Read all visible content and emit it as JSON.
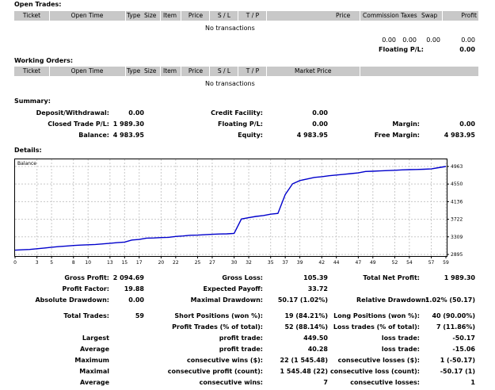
{
  "open_trades": {
    "title": "Open Trades:",
    "columns": [
      "Ticket",
      "Open Time",
      "Type",
      "Size",
      "Item",
      "Price",
      "S / L",
      "T / P",
      "Price",
      "Commission",
      "Taxes",
      "Swap",
      "Profit"
    ],
    "empty": "No transactions",
    "totals": {
      "commission": "0.00",
      "taxes": "0.00",
      "swap": "0.00",
      "profit": "0.00"
    },
    "floating_label": "Floating P/L:",
    "floating_value": "0.00"
  },
  "working_orders": {
    "title": "Working Orders:",
    "columns": [
      "Ticket",
      "Open Time",
      "Type",
      "Size",
      "Item",
      "Price",
      "S / L",
      "T / P",
      "Market Price"
    ],
    "empty": "No transactions"
  },
  "summary": {
    "title": "Summary:",
    "deposit_label": "Deposit/Withdrawal:",
    "deposit_value": "0.00",
    "credit_label": "Credit Facility:",
    "credit_value": "0.00",
    "closed_label": "Closed Trade P/L:",
    "closed_value": "1 989.30",
    "floating_label": "Floating P/L:",
    "floating_value": "0.00",
    "margin_label": "Margin:",
    "margin_value": "0.00",
    "balance_label": "Balance:",
    "balance_value": "4 983.95",
    "equity_label": "Equity:",
    "equity_value": "4 983.95",
    "free_margin_label": "Free Margin:",
    "free_margin_value": "4 983.95"
  },
  "details": {
    "title": "Details:"
  },
  "chart_data": {
    "type": "line",
    "legend": "Balance",
    "x_ticks": [
      0,
      3,
      5,
      8,
      10,
      13,
      15,
      17,
      20,
      22,
      25,
      27,
      30,
      32,
      35,
      37,
      39,
      42,
      44,
      47,
      49,
      52,
      54,
      57,
      59
    ],
    "y_ticks": [
      "4963",
      "4550",
      "4136",
      "3722",
      "3309",
      "2895"
    ],
    "ylim": [
      2895,
      4963
    ],
    "xlim": [
      0,
      59
    ],
    "grid": true,
    "series": [
      {
        "values": [
          [
            0,
            2995
          ],
          [
            1,
            3005
          ],
          [
            2,
            3012
          ],
          [
            3,
            3030
          ],
          [
            4,
            3045
          ],
          [
            5,
            3065
          ],
          [
            6,
            3080
          ],
          [
            7,
            3092
          ],
          [
            8,
            3105
          ],
          [
            9,
            3115
          ],
          [
            10,
            3122
          ],
          [
            11,
            3130
          ],
          [
            12,
            3142
          ],
          [
            13,
            3158
          ],
          [
            14,
            3172
          ],
          [
            15,
            3185
          ],
          [
            16,
            3235
          ],
          [
            17,
            3248
          ],
          [
            18,
            3278
          ],
          [
            19,
            3282
          ],
          [
            20,
            3292
          ],
          [
            21,
            3298
          ],
          [
            22,
            3318
          ],
          [
            23,
            3330
          ],
          [
            24,
            3345
          ],
          [
            25,
            3350
          ],
          [
            26,
            3358
          ],
          [
            27,
            3368
          ],
          [
            28,
            3375
          ],
          [
            29,
            3380
          ],
          [
            30,
            3388
          ],
          [
            31,
            3728
          ],
          [
            32,
            3760
          ],
          [
            33,
            3790
          ],
          [
            34,
            3810
          ],
          [
            35,
            3842
          ],
          [
            36,
            3860
          ],
          [
            37,
            4305
          ],
          [
            38,
            4555
          ],
          [
            39,
            4632
          ],
          [
            40,
            4668
          ],
          [
            41,
            4705
          ],
          [
            42,
            4722
          ],
          [
            43,
            4745
          ],
          [
            44,
            4762
          ],
          [
            45,
            4778
          ],
          [
            46,
            4795
          ],
          [
            47,
            4812
          ],
          [
            48,
            4845
          ],
          [
            49,
            4852
          ],
          [
            50,
            4858
          ],
          [
            51,
            4866
          ],
          [
            52,
            4874
          ],
          [
            53,
            4882
          ],
          [
            54,
            4888
          ],
          [
            55,
            4893
          ],
          [
            56,
            4898
          ],
          [
            57,
            4905
          ],
          [
            58,
            4935
          ],
          [
            59,
            4963
          ]
        ]
      }
    ]
  },
  "stats": {
    "gross_profit_label": "Gross Profit:",
    "gross_profit_value": "2 094.69",
    "gross_loss_label": "Gross Loss:",
    "gross_loss_value": "105.39",
    "net_profit_label": "Total Net Profit:",
    "net_profit_value": "1 989.30",
    "profit_factor_label": "Profit Factor:",
    "profit_factor_value": "19.88",
    "expected_payoff_label": "Expected Payoff:",
    "expected_payoff_value": "33.72",
    "abs_drawdown_label": "Absolute Drawdown:",
    "abs_drawdown_value": "0.00",
    "max_drawdown_label": "Maximal Drawdown:",
    "max_drawdown_value": "50.17 (1.02%)",
    "rel_drawdown_label": "Relative Drawdown:",
    "rel_drawdown_value": "1.02% (50.17)",
    "total_trades_label": "Total Trades:",
    "total_trades_value": "59",
    "short_label": "Short Positions (won %):",
    "short_value": "19 (84.21%)",
    "long_label": "Long Positions (won %):",
    "long_value": "40 (90.00%)",
    "profit_trades_label": "Profit Trades (% of total):",
    "profit_trades_value": "52 (88.14%)",
    "loss_trades_label": "Loss trades (% of total):",
    "loss_trades_value": "7 (11.86%)",
    "largest_label": "Largest",
    "largest_profit_label": "profit trade:",
    "largest_profit_value": "449.50",
    "largest_loss_label": "loss trade:",
    "largest_loss_value": "-50.17",
    "average_label": "Average",
    "average_profit_label": "profit trade:",
    "average_profit_value": "40.28",
    "average_loss_label": "loss trade:",
    "average_loss_value": "-15.06",
    "maximum_label": "Maximum",
    "max_cons_wins_label": "consecutive wins ($):",
    "max_cons_wins_value": "22 (1 545.48)",
    "max_cons_losses_label": "consecutive losses ($):",
    "max_cons_losses_value": "1 (-50.17)",
    "maximal_label": "Maximal",
    "maximal_cons_profit_label": "consecutive profit (count):",
    "maximal_cons_profit_value": "1 545.48 (22)",
    "maximal_cons_loss_label": "consecutive loss (count):",
    "maximal_cons_loss_value": "-50.17 (1)",
    "avg2_label": "Average",
    "avg_cons_wins_label": "consecutive wins:",
    "avg_cons_wins_value": "7",
    "avg_cons_losses_label": "consecutive losses:",
    "avg_cons_losses_value": "1"
  }
}
